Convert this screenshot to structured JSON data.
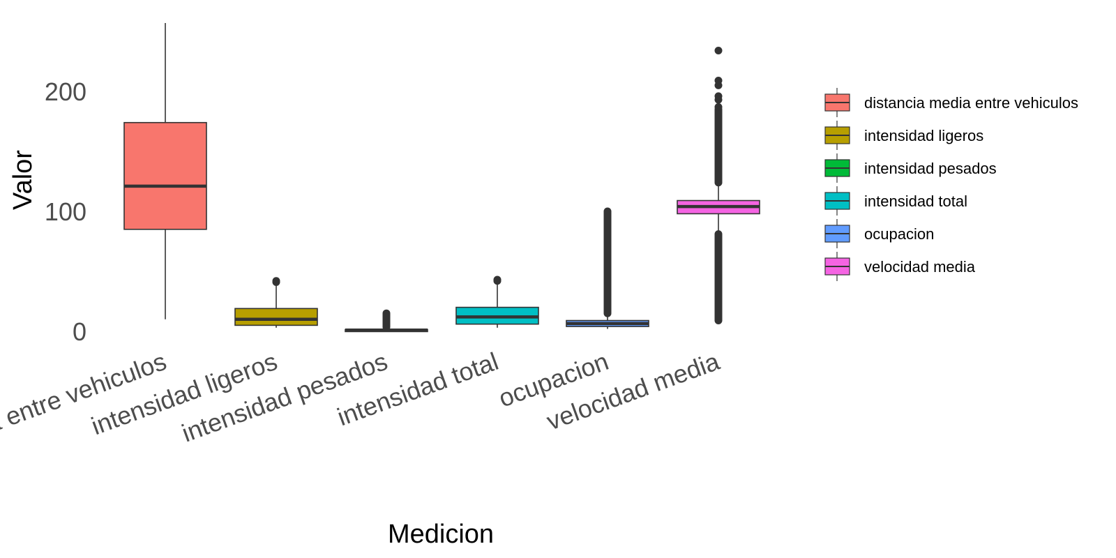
{
  "chart_data": {
    "type": "boxplot",
    "xlabel": "Medicion",
    "ylabel": "Valor",
    "y_ticks": [
      0,
      100,
      200
    ],
    "y_tick_labels": [
      "0",
      "100",
      "200"
    ],
    "ylim": [
      0,
      258
    ],
    "grid": false,
    "legend_position": "right",
    "categories": [
      "distancia media entre vehiculos",
      "intensidad ligeros",
      "intensidad pesados",
      "intensidad total",
      "ocupacion",
      "velocidad media"
    ],
    "x_tick_labels": [
      "distancia media entre vehiculos",
      "intensidad ligeros",
      "intensidad pesados",
      "intensidad total",
      "ocupacion",
      "velocidad media"
    ],
    "series": [
      {
        "name": "distancia media entre vehiculos",
        "color": "#F8766D",
        "whisker_low": 10,
        "q1": 85,
        "median": 121,
        "q3": 174,
        "whisker_high": 257,
        "outliers": [],
        "outlier_band": null
      },
      {
        "name": "intensidad ligeros",
        "color": "#B79F00",
        "whisker_low": 3,
        "q1": 5,
        "median": 10,
        "q3": 19,
        "whisker_high": 38,
        "outliers": [
          41,
          42
        ],
        "outlier_band": null
      },
      {
        "name": "intensidad pesados",
        "color": "#00BA38",
        "whisker_low": 0,
        "q1": 0.5,
        "median": 1,
        "q3": 1.5,
        "whisker_high": 3,
        "outliers": [],
        "outlier_band": [
          3.5,
          15
        ]
      },
      {
        "name": "intensidad total",
        "color": "#00BFC4",
        "whisker_low": 3,
        "q1": 6,
        "median": 12,
        "q3": 20,
        "whisker_high": 40,
        "outliers": [
          42,
          43
        ],
        "outlier_band": null
      },
      {
        "name": "ocupacion",
        "color": "#619CFF",
        "whisker_low": 2,
        "q1": 4,
        "median": 6.5,
        "q3": 9,
        "whisker_high": 14,
        "outliers": [],
        "outlier_band": [
          15,
          100
        ]
      },
      {
        "name": "velocidad media",
        "color": "#F564E3",
        "whisker_low": 83,
        "q1": 98,
        "median": 104,
        "q3": 109,
        "whisker_high": 123,
        "outliers": [
          187,
          193,
          196,
          205,
          209,
          234
        ],
        "outlier_band": [
          124,
          185
        ],
        "outlier_band_low": [
          9,
          81
        ]
      }
    ]
  }
}
